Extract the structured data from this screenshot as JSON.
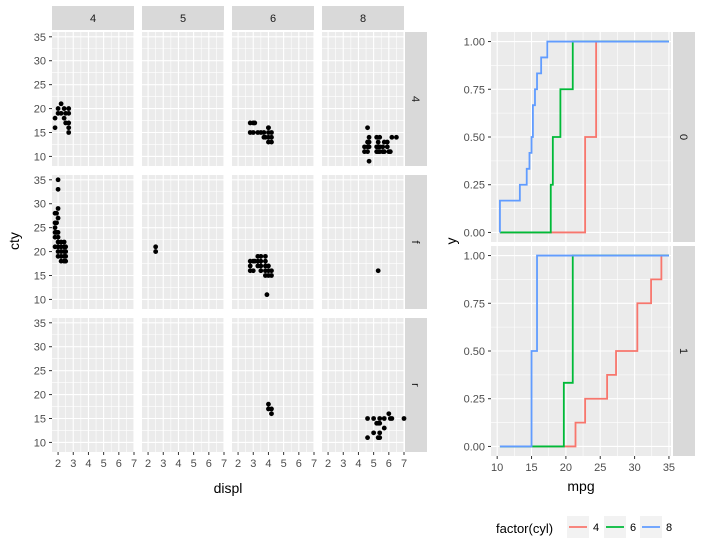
{
  "colors": {
    "panel_bg": "#ebebeb",
    "grid_major": "#ffffff",
    "strip_bg": "#d9d9d9",
    "axis_text": "#4d4d4d",
    "point": "#000000",
    "cyl4": "#F8766D",
    "cyl6": "#00BA38",
    "cyl8": "#619CFF"
  },
  "chart_data": [
    {
      "type": "scatter",
      "title": "",
      "xlabel": "displ",
      "ylabel": "cty",
      "xlim": [
        1.6,
        7.0
      ],
      "ylim": [
        8,
        36
      ],
      "x_ticks": [
        2,
        3,
        4,
        5,
        6,
        7
      ],
      "y_ticks": [
        10,
        15,
        20,
        25,
        30,
        35
      ],
      "col_facets": [
        "4",
        "5",
        "6",
        "8"
      ],
      "row_facets": [
        "4",
        "f",
        "r"
      ],
      "panels": [
        {
          "col": "4",
          "row": "4",
          "points": [
            [
              1.8,
              16
            ],
            [
              1.8,
              18
            ],
            [
              2.0,
              19
            ],
            [
              2.0,
              20
            ],
            [
              2.2,
              21
            ],
            [
              2.2,
              19
            ],
            [
              2.4,
              18
            ],
            [
              2.4,
              20
            ],
            [
              2.5,
              19
            ],
            [
              2.5,
              17
            ],
            [
              2.7,
              20
            ],
            [
              2.7,
              19
            ],
            [
              2.7,
              17
            ],
            [
              2.7,
              16
            ],
            [
              2.7,
              15
            ]
          ]
        },
        {
          "col": "4",
          "row": "f",
          "points": [
            [
              1.8,
              23
            ],
            [
              1.8,
              24
            ],
            [
              1.8,
              25
            ],
            [
              1.8,
              26
            ],
            [
              1.8,
              28
            ],
            [
              1.8,
              21
            ],
            [
              1.9,
              24
            ],
            [
              1.9,
              26
            ],
            [
              1.9,
              28
            ],
            [
              2.0,
              21
            ],
            [
              2.0,
              22
            ],
            [
              2.0,
              19
            ],
            [
              2.0,
              20
            ],
            [
              2.0,
              21
            ],
            [
              2.0,
              23
            ],
            [
              2.0,
              24
            ],
            [
              2.0,
              27
            ],
            [
              2.0,
              29
            ],
            [
              2.0,
              33
            ],
            [
              2.0,
              35
            ],
            [
              2.2,
              20
            ],
            [
              2.2,
              21
            ],
            [
              2.2,
              22
            ],
            [
              2.2,
              18
            ],
            [
              2.2,
              19
            ],
            [
              2.4,
              21
            ],
            [
              2.4,
              22
            ],
            [
              2.4,
              19
            ],
            [
              2.4,
              20
            ],
            [
              2.4,
              18
            ],
            [
              2.5,
              21
            ],
            [
              2.5,
              20
            ],
            [
              2.5,
              19
            ],
            [
              2.5,
              18
            ]
          ]
        },
        {
          "col": "5",
          "row": "f",
          "points": [
            [
              2.5,
              20
            ],
            [
              2.5,
              21
            ]
          ]
        },
        {
          "col": "6",
          "row": "4",
          "points": [
            [
              2.8,
              17
            ],
            [
              2.8,
              15
            ],
            [
              3.0,
              17
            ],
            [
              3.0,
              15
            ],
            [
              3.1,
              17
            ],
            [
              3.3,
              15
            ],
            [
              3.5,
              15
            ],
            [
              3.7,
              14
            ],
            [
              3.7,
              15
            ],
            [
              4.0,
              14
            ],
            [
              4.0,
              15
            ],
            [
              4.0,
              13
            ],
            [
              4.0,
              16
            ],
            [
              4.2,
              14
            ],
            [
              4.2,
              15
            ],
            [
              4.2,
              13
            ],
            [
              4.0,
              16
            ],
            [
              3.8,
              14
            ]
          ]
        },
        {
          "col": "6",
          "row": "f",
          "points": [
            [
              2.8,
              16
            ],
            [
              2.8,
              17
            ],
            [
              2.8,
              18
            ],
            [
              3.0,
              16
            ],
            [
              3.0,
              18
            ],
            [
              3.1,
              18
            ],
            [
              3.3,
              17
            ],
            [
              3.3,
              18
            ],
            [
              3.3,
              19
            ],
            [
              3.5,
              16
            ],
            [
              3.5,
              17
            ],
            [
              3.5,
              18
            ],
            [
              3.5,
              19
            ],
            [
              3.8,
              16
            ],
            [
              3.8,
              17
            ],
            [
              3.8,
              18
            ],
            [
              3.8,
              19
            ],
            [
              3.8,
              15
            ],
            [
              3.9,
              11
            ],
            [
              4.0,
              15
            ],
            [
              4.0,
              16
            ],
            [
              4.0,
              17
            ],
            [
              4.2,
              15
            ],
            [
              4.2,
              16
            ]
          ]
        },
        {
          "col": "6",
          "row": "r",
          "points": [
            [
              4.0,
              18
            ],
            [
              4.0,
              17
            ],
            [
              4.2,
              16
            ],
            [
              4.2,
              17
            ]
          ]
        },
        {
          "col": "8",
          "row": "4",
          "points": [
            [
              4.4,
              11
            ],
            [
              4.4,
              12
            ],
            [
              4.6,
              11
            ],
            [
              4.6,
              12
            ],
            [
              4.6,
              13
            ],
            [
              4.6,
              16
            ],
            [
              4.7,
              9
            ],
            [
              4.7,
              12
            ],
            [
              4.7,
              13
            ],
            [
              4.7,
              14
            ],
            [
              5.2,
              11
            ],
            [
              5.2,
              12
            ],
            [
              5.2,
              14
            ],
            [
              5.3,
              11
            ],
            [
              5.3,
              12
            ],
            [
              5.3,
              13
            ],
            [
              5.4,
              11
            ],
            [
              5.4,
              12
            ],
            [
              5.4,
              14
            ],
            [
              5.6,
              11
            ],
            [
              5.6,
              12
            ],
            [
              5.7,
              11
            ],
            [
              5.7,
              13
            ],
            [
              5.9,
              12
            ],
            [
              5.9,
              13
            ],
            [
              6.0,
              11
            ],
            [
              6.1,
              11
            ],
            [
              6.2,
              14
            ],
            [
              6.5,
              14
            ]
          ]
        },
        {
          "col": "8",
          "row": "f",
          "points": [
            [
              5.3,
              16
            ]
          ]
        },
        {
          "col": "8",
          "row": "r",
          "points": [
            [
              4.6,
              11
            ],
            [
              4.6,
              15
            ],
            [
              5.0,
              15
            ],
            [
              5.3,
              11
            ],
            [
              5.3,
              14
            ],
            [
              5.4,
              11
            ],
            [
              5.4,
              12
            ],
            [
              5.4,
              14
            ],
            [
              5.4,
              15
            ],
            [
              5.7,
              13
            ],
            [
              5.7,
              15
            ],
            [
              6.0,
              16
            ],
            [
              6.1,
              15
            ],
            [
              6.2,
              15
            ],
            [
              7.0,
              15
            ],
            [
              5.0,
              12
            ],
            [
              5.2,
              14
            ]
          ]
        }
      ]
    },
    {
      "type": "line",
      "title": "",
      "xlabel": "mpg",
      "ylabel": "y",
      "xlim": [
        9.1,
        35.3
      ],
      "ylim": [
        -0.05,
        1.05
      ],
      "x_ticks": [
        10,
        15,
        20,
        25,
        30,
        35
      ],
      "y_ticks": [
        0.0,
        0.25,
        0.5,
        0.75,
        1.0
      ],
      "y_tick_labels": [
        "0.00",
        "0.25",
        "0.50",
        "0.75",
        "1.00"
      ],
      "row_facets": [
        "0",
        "1"
      ],
      "legend": {
        "title": "factor(cyl)",
        "position": "bottom"
      },
      "series_names": [
        "4",
        "6",
        "8"
      ],
      "panels": [
        {
          "row": "0",
          "series": [
            {
              "name": "4",
              "x": [
                22.8,
                24.4
              ],
              "y": [
                0.5,
                1.0
              ]
            },
            {
              "name": "6",
              "x": [
                17.8,
                18.1,
                19.2,
                21.0
              ],
              "y": [
                0.25,
                0.5,
                0.75,
                1.0
              ]
            },
            {
              "name": "8",
              "x": [
                10.4,
                13.3,
                14.3,
                14.7,
                15.0,
                15.2,
                15.5,
                15.8,
                16.4,
                17.3,
                18.7,
                19.2
              ],
              "y": [
                0.1667,
                0.25,
                0.3333,
                0.4167,
                0.5,
                0.6667,
                0.75,
                0.8333,
                0.9167,
                1.0,
                1.0,
                1.0
              ]
            }
          ]
        },
        {
          "row": "1",
          "series": [
            {
              "name": "4",
              "x": [
                21.4,
                22.8,
                26.0,
                27.3,
                30.4,
                32.4,
                33.9
              ],
              "y": [
                0.125,
                0.25,
                0.375,
                0.5,
                0.75,
                0.875,
                1.0
              ]
            },
            {
              "name": "6",
              "x": [
                19.7,
                21.0
              ],
              "y": [
                0.3333,
                1.0
              ]
            },
            {
              "name": "8",
              "x": [
                15.0,
                15.8
              ],
              "y": [
                0.5,
                1.0
              ]
            }
          ]
        }
      ]
    }
  ]
}
